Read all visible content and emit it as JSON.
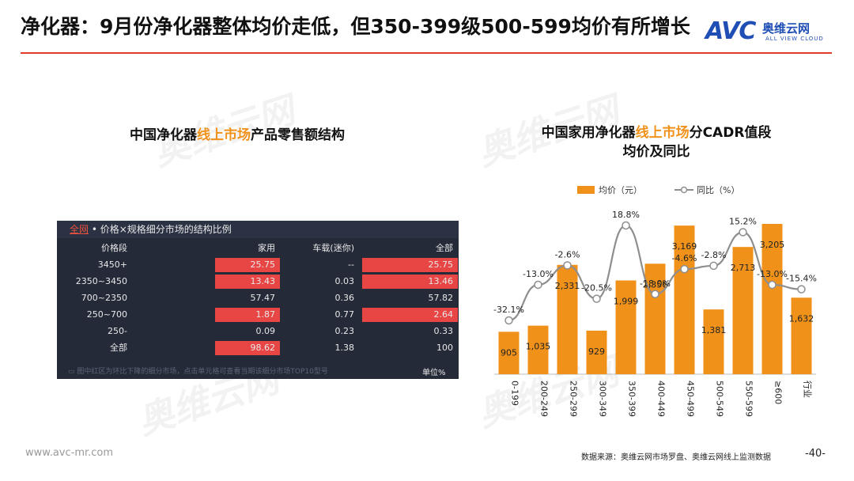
{
  "slide": {
    "title": "净化器：9月份净化器整体均价走低，但350-399级500-599均价有所增长",
    "logo_text_en": "AVC",
    "logo_text_cn": "奥维云网",
    "logo_sub": "ALL VIEW CLOUD",
    "watermark": "奥维云网",
    "footer_url": "www.avc-mr.com",
    "source": "数据来源：奥维云网市场罗盘、奥维云网线上监测数据",
    "page": "-40-"
  },
  "left": {
    "subtitle_a": "中国净化器",
    "subtitle_b": "线上市场",
    "subtitle_c": "产品零售额结构",
    "panel_all": "全网",
    "panel_title": " • 价格×规格细分市场的结构比例",
    "columns": [
      "价格段",
      "家用",
      "车载(迷你)",
      "全部"
    ],
    "rows": [
      {
        "label": "3450+",
        "home": "25.75",
        "car": "--",
        "total": "25.75",
        "home_red": true,
        "total_red": true
      },
      {
        "label": "2350~3450",
        "home": "13.43",
        "car": "0.03",
        "total": "13.46",
        "home_red": true,
        "total_red": true
      },
      {
        "label": "700~2350",
        "home": "57.47",
        "car": "0.36",
        "total": "57.82",
        "home_red": false,
        "total_red": false
      },
      {
        "label": "250~700",
        "home": "1.87",
        "car": "0.77",
        "total": "2.64",
        "home_red": true,
        "total_red": true
      },
      {
        "label": "250-",
        "home": "0.09",
        "car": "0.23",
        "total": "0.33",
        "home_red": false,
        "total_red": false
      },
      {
        "label": "全部",
        "home": "98.62",
        "car": "1.38",
        "total": "100",
        "home_red": true,
        "total_red": false
      }
    ],
    "note": "图中红区为环比下降的细分市场，点击单元格可查看当期该细分市场TOP10型号",
    "unit": "单位%"
  },
  "right": {
    "subtitle_a": "中国家用净化器",
    "subtitle_b": "线上市场",
    "subtitle_c": "分CADR值段",
    "subtitle_line2": "均价及同比"
  },
  "chart_data": {
    "type": "bar",
    "categories": [
      "0-199",
      "200-249",
      "250-299",
      "300-349",
      "350-399",
      "400-449",
      "450-499",
      "500-549",
      "550-599",
      "≥600",
      "行业"
    ],
    "series": [
      {
        "name": "均价（元）",
        "type": "bar",
        "values": [
          905,
          1035,
          2331,
          929,
          1999,
          2356,
          3169,
          1381,
          2713,
          3205,
          1632
        ],
        "color": "#f0921a"
      },
      {
        "name": "同比（%）",
        "type": "line",
        "values": [
          -32.1,
          -13.0,
          -2.6,
          -20.5,
          18.8,
          -18.0,
          -4.6,
          -2.8,
          15.2,
          -13.0,
          -15.4
        ],
        "color": "#8e8e8e"
      }
    ],
    "bar_labels": [
      "905",
      "1,035",
      "2,331",
      "929",
      "1,999",
      "2,356",
      "3,169",
      "1,381",
      "2,713",
      "3,205",
      "1,632"
    ],
    "line_labels": [
      "-32.1%",
      "-13.0%",
      "-2.6%",
      "-20.5%",
      "18.8%",
      "-18.0%",
      "-4.6%",
      "-2.8%",
      "15.2%",
      "-13.0%",
      "-15.4%"
    ],
    "legend_position": "top",
    "grid": false
  }
}
